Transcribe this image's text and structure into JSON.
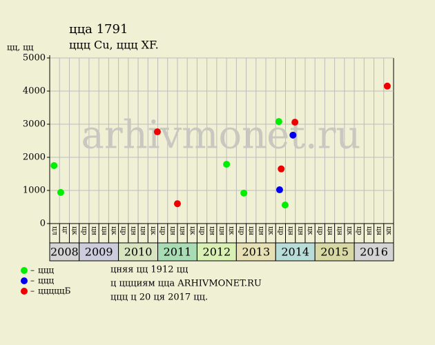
{
  "chart_data": {
    "type": "scatter",
    "title": "ццa 1791",
    "subtitle": "ццц Cu, ццц XF.",
    "y_label": "цц, цц",
    "watermark": "arhivmonet.ru",
    "xlim": [
      2008.25,
      2017
    ],
    "ylim": [
      0,
      5000
    ],
    "yticks": [
      0,
      1000,
      2000,
      3000,
      4000,
      5000
    ],
    "grid": true,
    "years": [
      "2008",
      "2009",
      "2010",
      "2011",
      "2012",
      "2013",
      "2014",
      "2015",
      "2016"
    ],
    "year_colors": [
      "#d4d4d4",
      "#ccccdc",
      "#d8e4c0",
      "#a8dcb4",
      "#d8f0b4",
      "#e6e0b4",
      "#b8dcd8",
      "#d8d8a4",
      "#d4d4d4"
    ],
    "column_labels": [
      "цл",
      "цг",
      "цк",
      "цр",
      "цн",
      "цн",
      "цк",
      "цр",
      "цн",
      "цн",
      "цк",
      "цр",
      "цн",
      "цн",
      "цк",
      "цр",
      "цн",
      "цн",
      "цк",
      "цр",
      "цн",
      "цн",
      "цк",
      "цр",
      "цн",
      "цн",
      "цк",
      "цр",
      "цн",
      "цн",
      "цк",
      "цр",
      "цн",
      "цн",
      "цк"
    ],
    "series": [
      {
        "name": "ццц",
        "color": "#00ee00",
        "x": [
          2008.36,
          2008.53,
          2012.75,
          2013.19,
          2014.08,
          2014.24
        ],
        "values": [
          1750,
          940,
          1790,
          920,
          3080,
          560
        ]
      },
      {
        "name": "ццц",
        "color": "#0000ee",
        "x": [
          2014.1,
          2014.44
        ],
        "values": [
          1020,
          2670
        ]
      },
      {
        "name": "цццццБ",
        "color": "#ee0000",
        "x": [
          2010.99,
          2011.5,
          2014.14,
          2014.49,
          2016.84
        ],
        "values": [
          2770,
          600,
          1650,
          3060,
          4150
        ]
      }
    ],
    "notes": [
      "цняя цц 1912 цц",
      "ц ццциям цца ARHIVMONET.RU",
      "ццц ц 20 ця 2017 цц."
    ]
  }
}
